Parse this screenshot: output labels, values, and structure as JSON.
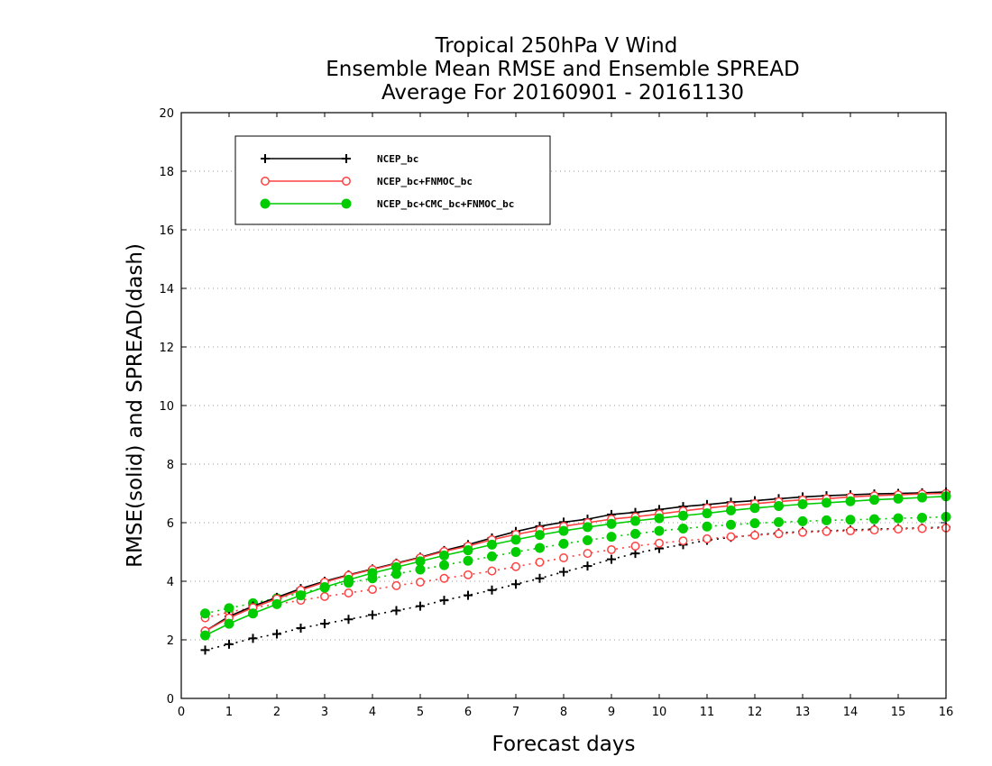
{
  "chart_data": {
    "type": "line",
    "title_lines": [
      "Tropical 250hPa V Wind",
      "Ensemble Mean RMSE and Ensemble SPREAD",
      "Average For 20160901 - 20161130"
    ],
    "xlabel": "Forecast days",
    "ylabel": "RMSE(solid) and SPREAD(dash)",
    "xlim": [
      0,
      16
    ],
    "ylim": [
      0,
      20
    ],
    "xticks": [
      0,
      1,
      2,
      3,
      4,
      5,
      6,
      7,
      8,
      9,
      10,
      11,
      12,
      13,
      14,
      15,
      16
    ],
    "yticks": [
      0,
      2,
      4,
      6,
      8,
      10,
      12,
      14,
      16,
      18,
      20
    ],
    "grid": "horizontal dotted",
    "legend_position": "top-left",
    "x": [
      0.5,
      1,
      1.5,
      2,
      2.5,
      3,
      3.5,
      4,
      4.5,
      5,
      5.5,
      6,
      6.5,
      7,
      7.5,
      8,
      8.5,
      9,
      9.5,
      10,
      10.5,
      11,
      11.5,
      12,
      12.5,
      13,
      13.5,
      14,
      14.5,
      15,
      15.5,
      16
    ],
    "series": [
      {
        "name": "NCEP_bc",
        "color": "#000000",
        "marker": "plus",
        "rmse": [
          2.3,
          2.8,
          3.15,
          3.45,
          3.75,
          4.0,
          4.22,
          4.42,
          4.62,
          4.82,
          5.05,
          5.25,
          5.48,
          5.7,
          5.88,
          6.02,
          6.12,
          6.28,
          6.35,
          6.45,
          6.55,
          6.62,
          6.7,
          6.75,
          6.82,
          6.88,
          6.92,
          6.95,
          6.98,
          7.0,
          7.02,
          7.05
        ],
        "spread": [
          1.65,
          1.85,
          2.05,
          2.2,
          2.4,
          2.55,
          2.7,
          2.85,
          3.0,
          3.15,
          3.35,
          3.52,
          3.7,
          3.9,
          4.1,
          4.32,
          4.52,
          4.75,
          4.95,
          5.12,
          5.25,
          5.4,
          5.5,
          5.58,
          5.65,
          5.7,
          5.72,
          5.75,
          5.78,
          5.8,
          5.82,
          5.85
        ]
      },
      {
        "name": "NCEP_bc+FNMOC_bc",
        "color": "#ff4040",
        "marker": "open-circle",
        "rmse": [
          2.3,
          2.75,
          3.1,
          3.4,
          3.7,
          3.97,
          4.2,
          4.4,
          4.6,
          4.8,
          5.02,
          5.2,
          5.42,
          5.6,
          5.75,
          5.88,
          6.0,
          6.12,
          6.2,
          6.3,
          6.4,
          6.5,
          6.58,
          6.65,
          6.72,
          6.78,
          6.82,
          6.88,
          6.92,
          6.95,
          6.98,
          7.0
        ],
        "spread": [
          2.75,
          2.95,
          3.1,
          3.22,
          3.35,
          3.48,
          3.6,
          3.72,
          3.85,
          3.97,
          4.1,
          4.22,
          4.35,
          4.5,
          4.65,
          4.8,
          4.95,
          5.08,
          5.2,
          5.3,
          5.38,
          5.45,
          5.52,
          5.57,
          5.62,
          5.67,
          5.7,
          5.72,
          5.75,
          5.78,
          5.8,
          5.82
        ]
      },
      {
        "name": "NCEP_bc+CMC_bc+FNMOC_bc",
        "color": "#00cc00",
        "marker": "filled-circle",
        "rmse": [
          2.15,
          2.55,
          2.9,
          3.22,
          3.52,
          3.8,
          4.05,
          4.28,
          4.48,
          4.68,
          4.88,
          5.06,
          5.25,
          5.42,
          5.58,
          5.72,
          5.85,
          5.96,
          6.06,
          6.15,
          6.24,
          6.32,
          6.42,
          6.5,
          6.57,
          6.63,
          6.68,
          6.73,
          6.78,
          6.82,
          6.86,
          6.9
        ],
        "spread": [
          2.9,
          3.08,
          3.25,
          3.42,
          3.6,
          3.78,
          3.95,
          4.1,
          4.25,
          4.4,
          4.55,
          4.7,
          4.85,
          5.0,
          5.14,
          5.28,
          5.4,
          5.52,
          5.62,
          5.72,
          5.8,
          5.87,
          5.93,
          5.98,
          6.02,
          6.05,
          6.08,
          6.1,
          6.12,
          6.15,
          6.17,
          6.2
        ]
      }
    ]
  }
}
